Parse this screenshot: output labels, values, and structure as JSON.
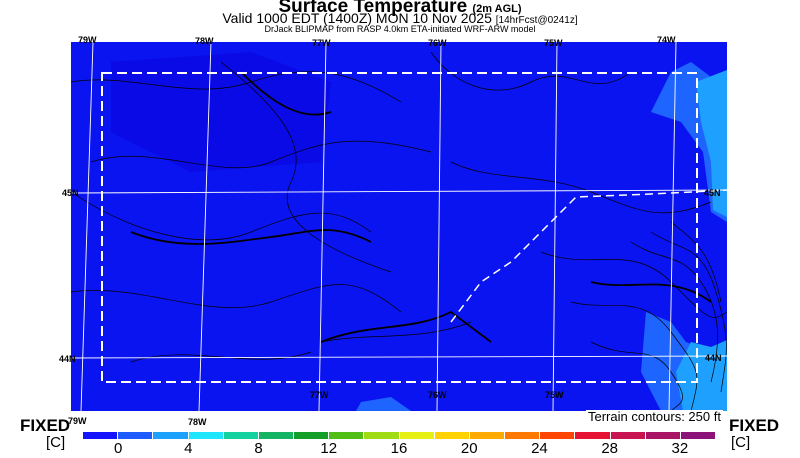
{
  "title": {
    "main": "Surface Temperature",
    "qualifier": "(2m AGL)"
  },
  "subtitle": {
    "main": "Valid 1000 EDT (1400Z) MON 10 Nov 2025",
    "forecast": "[14hrFcst@0241z]"
  },
  "source": "DrJack BLIPMAP from RASP 4.0km ETA-initiated WRF-ARW model",
  "grid_labels": {
    "top": [
      "79W",
      "78W",
      "77W",
      "76W",
      "75W",
      "74W"
    ],
    "left": [
      "45N",
      "44N"
    ],
    "right": [
      "45N",
      "44N"
    ],
    "bottom_inner": [
      "77W",
      "76W",
      "75W"
    ],
    "bottom_outer": [
      "79W",
      "78W"
    ]
  },
  "terrain_note": "Terrain contours: 250 ft",
  "fixed_label": "FIXED",
  "unit_label": "[C]",
  "colorbar": {
    "labels": [
      "0",
      "4",
      "8",
      "12",
      "16",
      "20",
      "24",
      "28",
      "32"
    ],
    "colors": [
      "#1414ff",
      "#1e5cff",
      "#1ea0ff",
      "#1ee6ff",
      "#14d2a0",
      "#14b464",
      "#14a028",
      "#50be14",
      "#a0dc14",
      "#e6f014",
      "#ffd200",
      "#ffaa00",
      "#ff7800",
      "#ff4600",
      "#e61432",
      "#c81450",
      "#aa1464",
      "#8c1478"
    ]
  },
  "map_colors": {
    "base": "#0a14f0",
    "shade": "#0a0af0",
    "warm": "#1e64ff",
    "warm2": "#1ea0ff"
  },
  "map_features": [
    "contour-lines",
    "lat-lon-grid",
    "domain-boundary",
    "state-border"
  ]
}
